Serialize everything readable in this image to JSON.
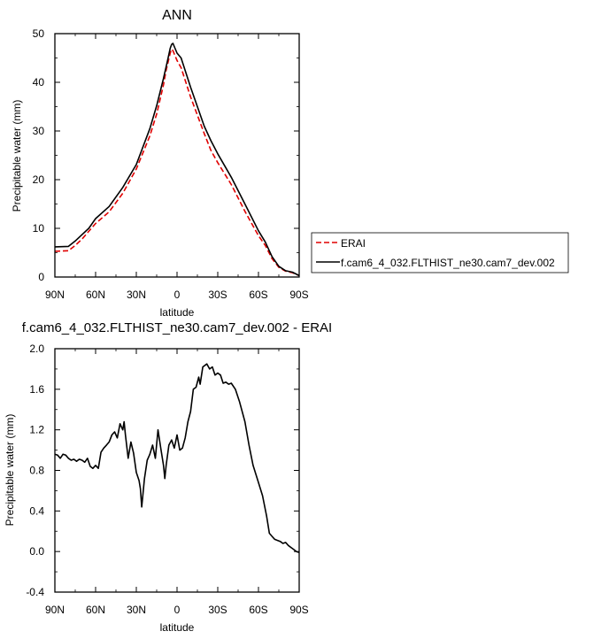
{
  "chart_data": [
    {
      "type": "line",
      "title": "ANN",
      "xlabel": "latitude",
      "ylabel": "Precipitable water (mm)",
      "xlim": [
        90,
        -90
      ],
      "ylim": [
        0,
        50
      ],
      "xticks": [
        90,
        60,
        30,
        0,
        -30,
        -60,
        -90
      ],
      "xtick_labels": [
        "90N",
        "60N",
        "30N",
        "0",
        "30S",
        "60S",
        "90S"
      ],
      "yticks": [
        0,
        10,
        20,
        30,
        40,
        50
      ],
      "ytick_labels": [
        "0",
        "10",
        "20",
        "30",
        "40",
        "50"
      ],
      "legend_position": "right",
      "series": [
        {
          "name": "ERAI",
          "color": "#e00000",
          "dash": "dashed",
          "points": [
            [
              90,
              5.3
            ],
            [
              80,
              5.4
            ],
            [
              75,
              6.5
            ],
            [
              70,
              7.8
            ],
            [
              60,
              11.0
            ],
            [
              50,
              13.4
            ],
            [
              40,
              17.2
            ],
            [
              30,
              22.2
            ],
            [
              20,
              29.0
            ],
            [
              15,
              33.5
            ],
            [
              10,
              39.5
            ],
            [
              8,
              42.5
            ],
            [
              5,
              46.0
            ],
            [
              4,
              46.8
            ],
            [
              3,
              46.5
            ],
            [
              0,
              44.5
            ],
            [
              -3,
              43.0
            ],
            [
              -10,
              37.0
            ],
            [
              -20,
              29.5
            ],
            [
              -25,
              26.0
            ],
            [
              -30,
              23.5
            ],
            [
              -40,
              19.0
            ],
            [
              -50,
              13.5
            ],
            [
              -60,
              8.5
            ],
            [
              -65,
              6.5
            ],
            [
              -70,
              3.8
            ],
            [
              -75,
              2.0
            ],
            [
              -80,
              1.2
            ],
            [
              -85,
              0.9
            ],
            [
              -90,
              0.3
            ]
          ]
        },
        {
          "name": "f.cam6_4_032.FLTHIST_ne30.cam7_dev.002",
          "color": "#000000",
          "dash": "solid",
          "points": [
            [
              90,
              6.2
            ],
            [
              80,
              6.3
            ],
            [
              75,
              7.4
            ],
            [
              70,
              8.7
            ],
            [
              65,
              10.0
            ],
            [
              60,
              12.0
            ],
            [
              50,
              14.5
            ],
            [
              40,
              18.4
            ],
            [
              30,
              23.1
            ],
            [
              20,
              30.5
            ],
            [
              15,
              35.2
            ],
            [
              10,
              40.8
            ],
            [
              7,
              44.5
            ],
            [
              5,
              47.0
            ],
            [
              4,
              47.8
            ],
            [
              3,
              48.0
            ],
            [
              0,
              46.0
            ],
            [
              -3,
              45.0
            ],
            [
              -10,
              39.0
            ],
            [
              -20,
              31.0
            ],
            [
              -25,
              28.0
            ],
            [
              -30,
              25.3
            ],
            [
              -40,
              20.5
            ],
            [
              -50,
              15.0
            ],
            [
              -60,
              9.5
            ],
            [
              -65,
              7.2
            ],
            [
              -70,
              4.2
            ],
            [
              -75,
              2.2
            ],
            [
              -80,
              1.3
            ],
            [
              -85,
              1.0
            ],
            [
              -90,
              0.3
            ]
          ]
        }
      ]
    },
    {
      "type": "line",
      "title": "f.cam6_4_032.FLTHIST_ne30.cam7_dev.002 - ERAI",
      "xlabel": "latitude",
      "ylabel": "Precipitable water (mm)",
      "xlim": [
        90,
        -90
      ],
      "ylim": [
        -0.4,
        2.0
      ],
      "xticks": [
        90,
        60,
        30,
        0,
        -30,
        -60,
        -90
      ],
      "xtick_labels": [
        "90N",
        "60N",
        "30N",
        "0",
        "30S",
        "60S",
        "90S"
      ],
      "yticks": [
        -0.4,
        0.0,
        0.4,
        0.8,
        1.2,
        1.6,
        2.0
      ],
      "ytick_labels": [
        "-0.4",
        "0.0",
        "0.4",
        "0.8",
        "1.2",
        "1.6",
        "2.0"
      ],
      "series": [
        {
          "name": "",
          "color": "#000000",
          "dash": "solid",
          "points": [
            [
              90,
              0.96
            ],
            [
              88,
              0.95
            ],
            [
              86,
              0.92
            ],
            [
              84,
              0.96
            ],
            [
              82,
              0.95
            ],
            [
              80,
              0.92
            ],
            [
              78,
              0.9
            ],
            [
              76,
              0.91
            ],
            [
              74,
              0.89
            ],
            [
              72,
              0.91
            ],
            [
              70,
              0.9
            ],
            [
              68,
              0.88
            ],
            [
              66,
              0.92
            ],
            [
              64,
              0.84
            ],
            [
              62,
              0.82
            ],
            [
              60,
              0.85
            ],
            [
              58,
              0.82
            ],
            [
              56,
              0.98
            ],
            [
              54,
              1.02
            ],
            [
              52,
              1.05
            ],
            [
              50,
              1.08
            ],
            [
              48,
              1.15
            ],
            [
              46,
              1.18
            ],
            [
              44,
              1.12
            ],
            [
              42,
              1.26
            ],
            [
              40,
              1.2
            ],
            [
              39,
              1.28
            ],
            [
              38,
              1.15
            ],
            [
              36,
              0.92
            ],
            [
              34,
              1.08
            ],
            [
              32,
              0.97
            ],
            [
              30,
              0.78
            ],
            [
              28,
              0.7
            ],
            [
              27,
              0.62
            ],
            [
              26,
              0.44
            ],
            [
              24,
              0.72
            ],
            [
              22,
              0.9
            ],
            [
              20,
              0.96
            ],
            [
              18,
              1.05
            ],
            [
              16,
              0.92
            ],
            [
              14,
              1.2
            ],
            [
              12,
              1.02
            ],
            [
              10,
              0.85
            ],
            [
              9,
              0.72
            ],
            [
              8,
              0.85
            ],
            [
              6,
              1.05
            ],
            [
              4,
              1.1
            ],
            [
              2,
              1.02
            ],
            [
              0,
              1.15
            ],
            [
              -2,
              1.0
            ],
            [
              -4,
              1.02
            ],
            [
              -6,
              1.12
            ],
            [
              -8,
              1.28
            ],
            [
              -10,
              1.38
            ],
            [
              -12,
              1.6
            ],
            [
              -14,
              1.62
            ],
            [
              -16,
              1.72
            ],
            [
              -17,
              1.65
            ],
            [
              -19,
              1.82
            ],
            [
              -22,
              1.85
            ],
            [
              -24,
              1.8
            ],
            [
              -26,
              1.82
            ],
            [
              -28,
              1.74
            ],
            [
              -30,
              1.76
            ],
            [
              -32,
              1.74
            ],
            [
              -34,
              1.66
            ],
            [
              -36,
              1.67
            ],
            [
              -38,
              1.65
            ],
            [
              -40,
              1.66
            ],
            [
              -43,
              1.6
            ],
            [
              -46,
              1.48
            ],
            [
              -50,
              1.28
            ],
            [
              -53,
              1.05
            ],
            [
              -56,
              0.85
            ],
            [
              -60,
              0.68
            ],
            [
              -63,
              0.55
            ],
            [
              -66,
              0.35
            ],
            [
              -68,
              0.18
            ],
            [
              -70,
              0.15
            ],
            [
              -72,
              0.12
            ],
            [
              -74,
              0.11
            ],
            [
              -76,
              0.1
            ],
            [
              -78,
              0.08
            ],
            [
              -80,
              0.09
            ],
            [
              -82,
              0.06
            ],
            [
              -84,
              0.04
            ],
            [
              -86,
              0.02
            ],
            [
              -88,
              0.0
            ],
            [
              -90,
              -0.01
            ]
          ]
        }
      ]
    }
  ]
}
